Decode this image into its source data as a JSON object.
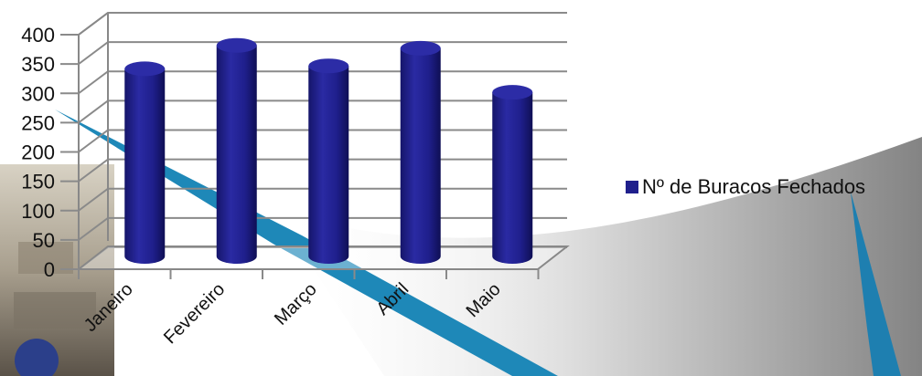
{
  "chart_data": {
    "type": "bar",
    "style": "3d-cylinder",
    "categories": [
      "Janeiro",
      "Fevereiro",
      "Março",
      "Abril",
      "Maio"
    ],
    "series": [
      {
        "name": "Nº de Buracos Fechados",
        "values": [
          320,
          360,
          325,
          355,
          280
        ],
        "color": "#1f1f8c"
      }
    ],
    "ylim": [
      0,
      400
    ],
    "yticks": [
      "400",
      "350",
      "300",
      "250",
      "200",
      "150",
      "100",
      "50",
      "0"
    ],
    "grid": true,
    "legend_position": "right"
  }
}
